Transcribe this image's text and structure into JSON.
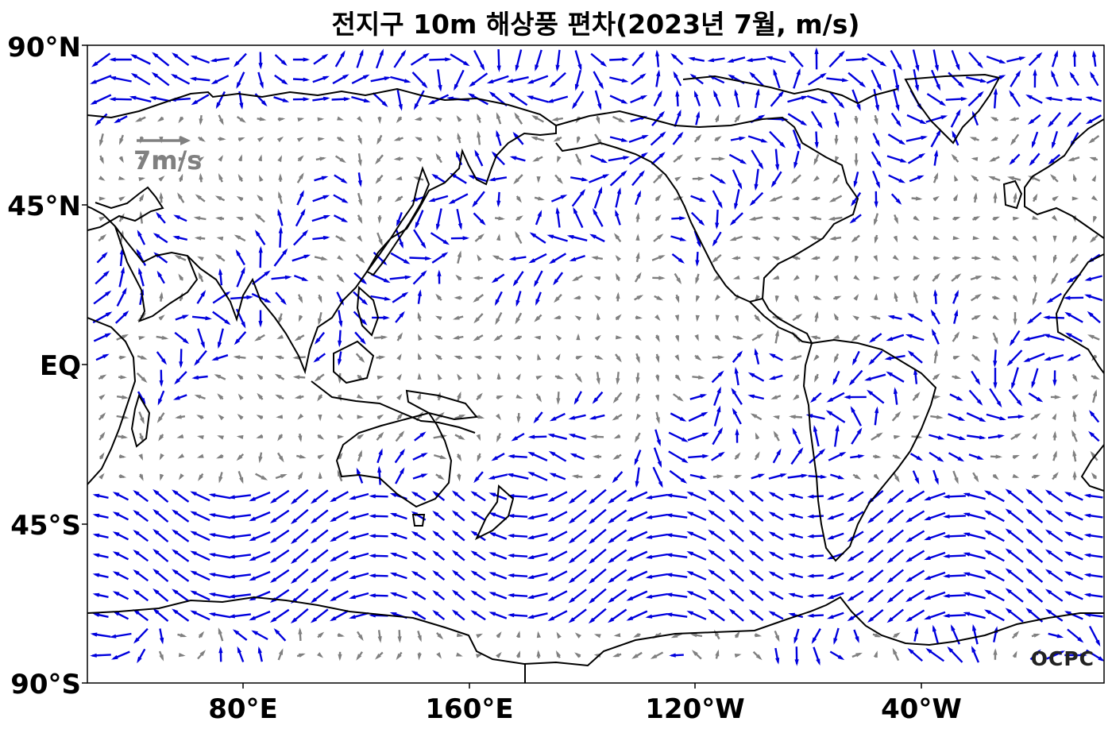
{
  "title": "전지구 10m 해상풍 편차(2023년 7월, m/s)",
  "lat_labels": [
    "90°N",
    "45°N",
    "EQ",
    "45°S",
    "90°S"
  ],
  "lon_labels": [
    "80°E",
    "160°E",
    "120°W",
    "40°W"
  ],
  "reference_vector": {
    "label": "7m/s",
    "color": "#808080"
  },
  "logo": "OCPC",
  "colors": {
    "strong_anomaly": "#0000dd",
    "weak_anomaly": "#808080",
    "coastline": "#000000"
  }
}
